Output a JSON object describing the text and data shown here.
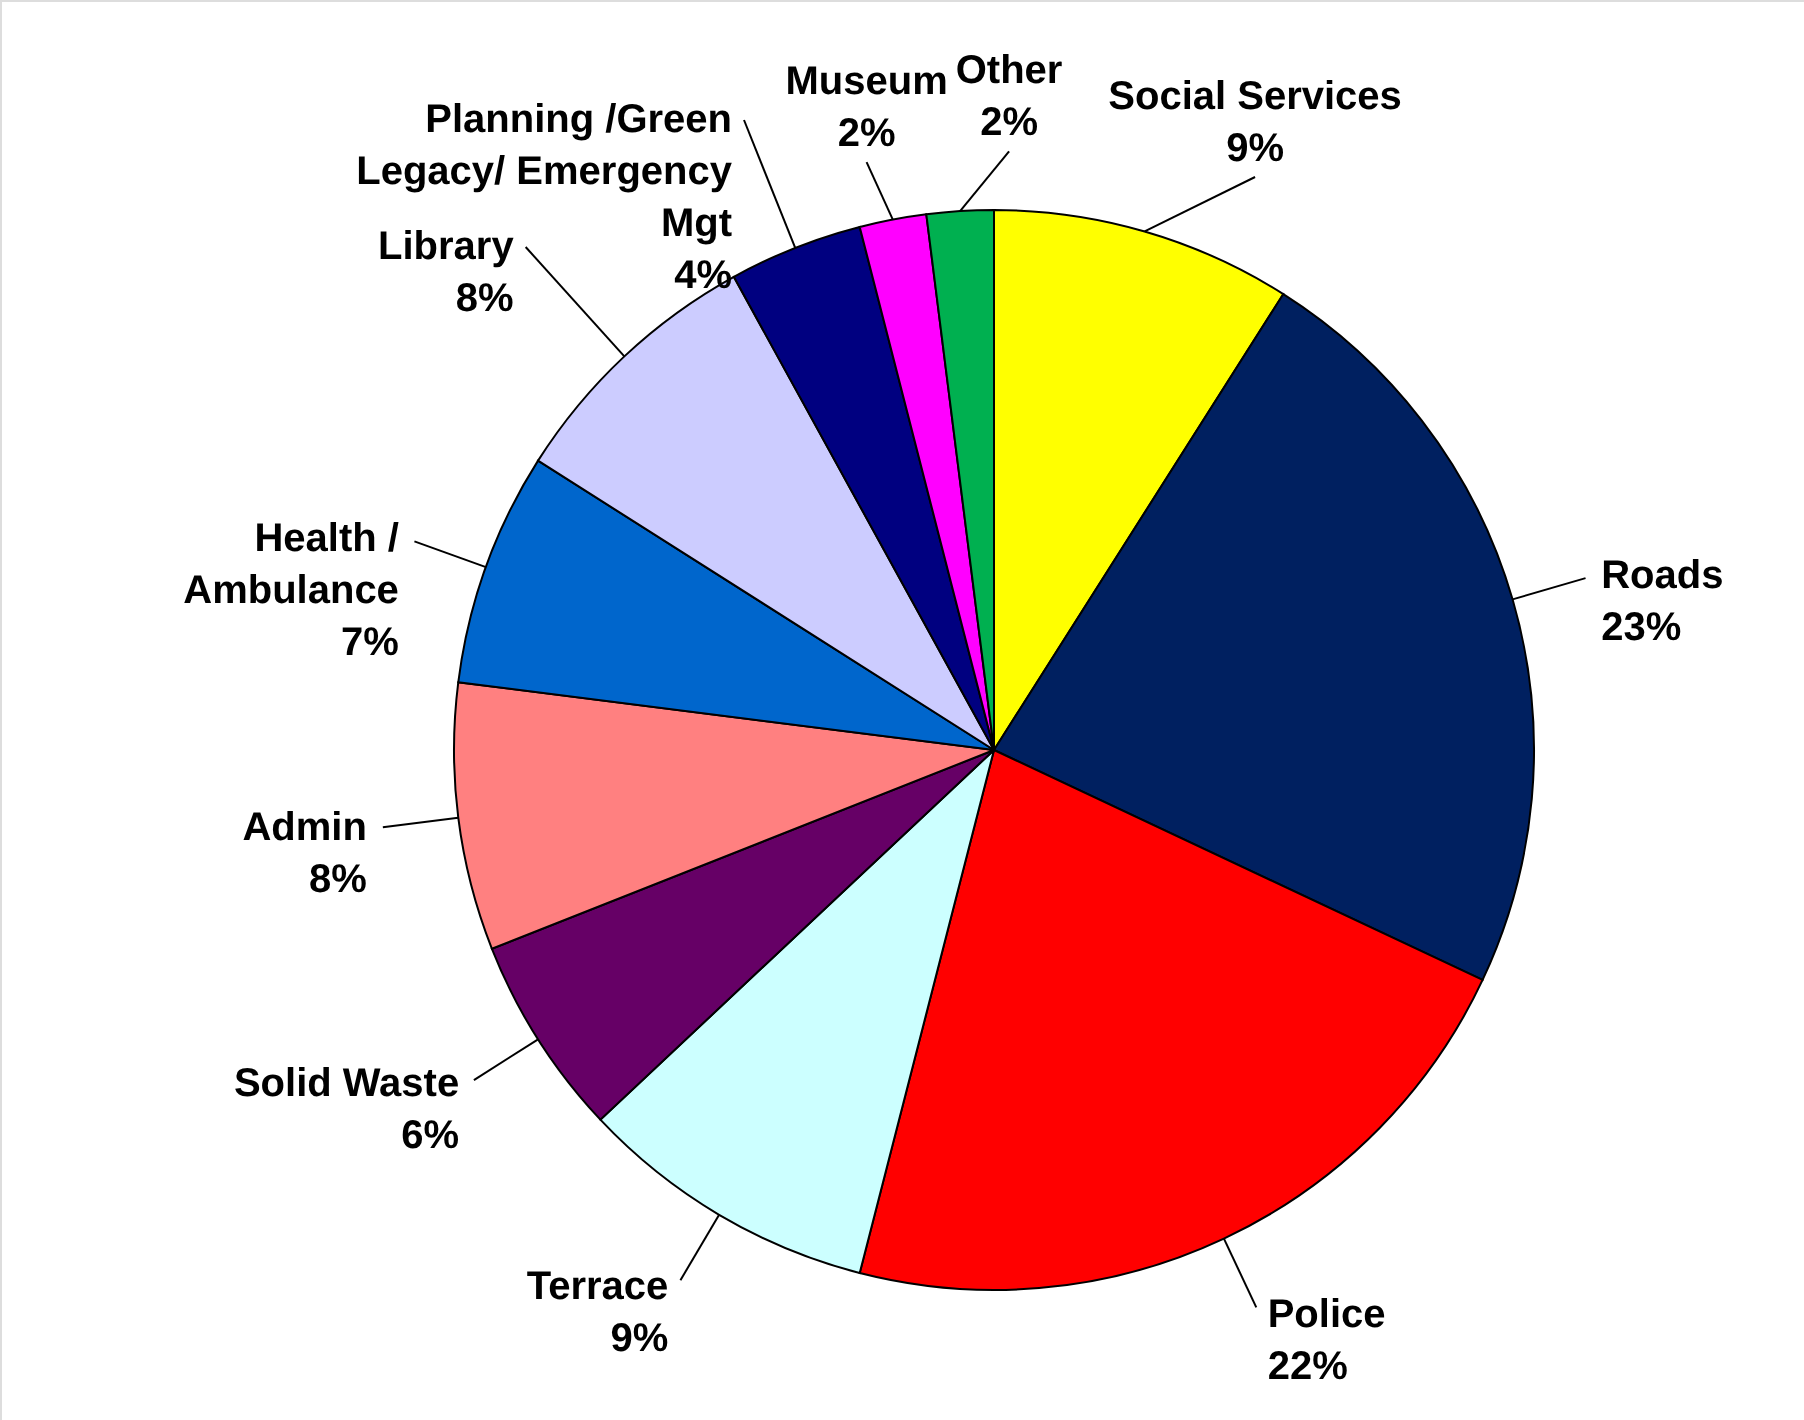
{
  "chart_data": {
    "type": "pie",
    "categories": [
      "Social Services",
      "Roads",
      "Police",
      "Terrace",
      "Solid Waste",
      "Admin",
      "Health / Ambulance",
      "Library",
      "Planning /Green Legacy/ Emergency Mgt",
      "Museum",
      "Other"
    ],
    "values": [
      9,
      23,
      22,
      9,
      6,
      8,
      7,
      8,
      4,
      2,
      2
    ],
    "value_labels": [
      "9%",
      "23%",
      "22%",
      "9%",
      "6%",
      "8%",
      "7%",
      "8%",
      "4%",
      "2%",
      "2%"
    ],
    "colors": [
      "#ffff00",
      "#002060",
      "#ff0000",
      "#ccffff",
      "#660066",
      "#ff8080",
      "#0066cc",
      "#ccccff",
      "#000080",
      "#ff00ff",
      "#00b050"
    ]
  }
}
